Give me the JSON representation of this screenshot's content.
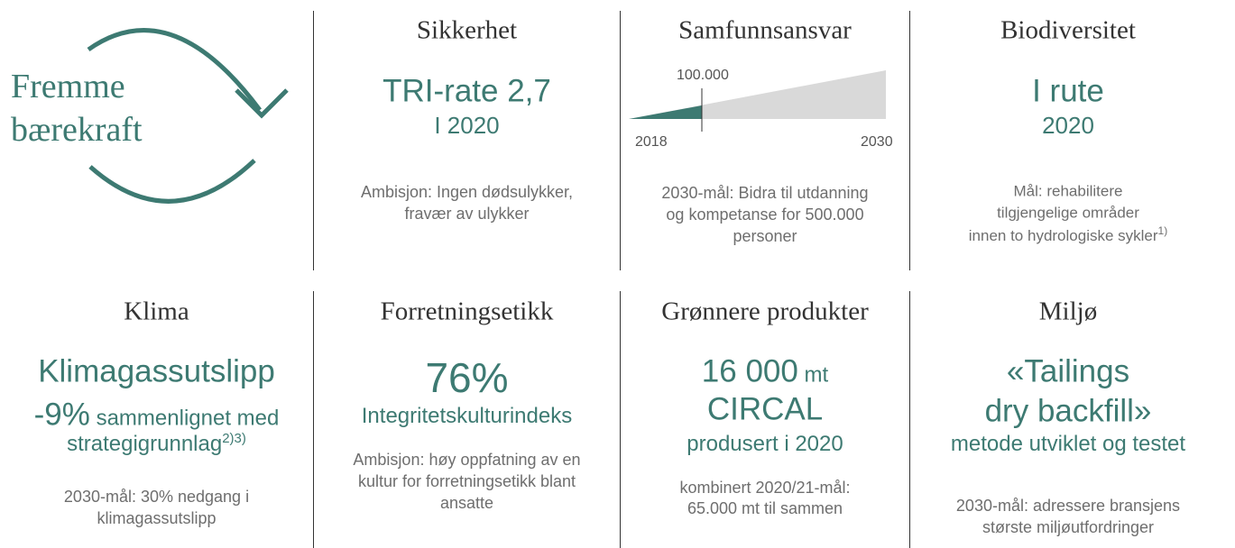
{
  "logo": {
    "lines": [
      "Fremme",
      "bærekraft"
    ]
  },
  "cards": [
    {
      "heading": "Sikkerhet",
      "value": "TRI-rate 2,7",
      "period": "I 2020",
      "text": [
        "Ambisjon: Ingen dødsulykker,",
        "fravær av ulykker"
      ]
    },
    {
      "heading": "Samfunnsansvar",
      "chart": {
        "marker": "100.000",
        "start": "2018",
        "end": "2030"
      },
      "text": [
        "2030-mål: Bidra til utdanning",
        "og kompetanse for 500.000",
        "personer"
      ]
    },
    {
      "heading": "Biodiversitet",
      "value": "I rute",
      "period": "2020",
      "text": [
        "Mål: rehabilitere",
        "tilgjengelige områder",
        "innen to hydrologiske sykler"
      ],
      "footnote": "1)"
    },
    {
      "heading": "Klima",
      "value": "Klimagassutslipp",
      "change": "-9%",
      "change_text": "sammenlignet med",
      "basis": "strategigrunnlag",
      "footnote": "2)3)",
      "text": [
        "2030-mål: 30% nedgang i",
        "klimagassutslipp"
      ]
    },
    {
      "heading": "Forretningsetikk",
      "value": "76%",
      "label": "Integritetskulturindeks",
      "text": [
        "Ambisjon: høy oppfatning av en",
        "kultur for forretningsetikk blant",
        "ansatte"
      ]
    },
    {
      "heading": "Grønnere produkter",
      "amount": "16 000",
      "unit": "mt",
      "product": "CIRCAL",
      "period": "produsert i 2020",
      "text": [
        "kombinert 2020/21-mål:",
        "65.000 mt til sammen"
      ]
    },
    {
      "heading": "Miljø",
      "value": [
        "«Tailings",
        "dry backfill»"
      ],
      "detail": "metode utviklet og testet",
      "text": [
        "2030-mål: adressere bransjens",
        "største miljøutfordringer"
      ]
    }
  ]
}
